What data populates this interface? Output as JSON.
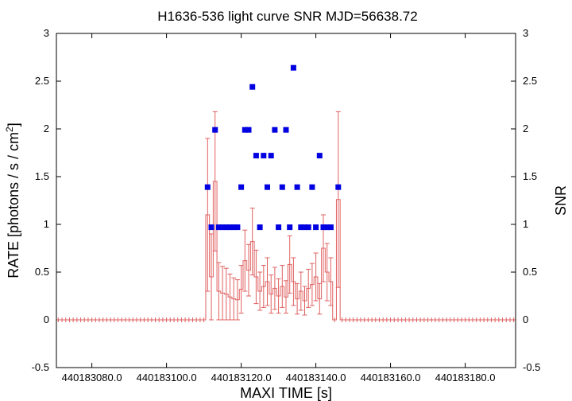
{
  "chart_data": {
    "type": "scatter",
    "title": "H1636-536 light curve  SNR MJD=56638.72",
    "xlabel": "MAXI TIME [s]",
    "ylabel_main": "RATE [photons / s / cm",
    "ylabel_sup": "2",
    "ylabel_end": "]",
    "y2label": "SNR",
    "xlim": [
      440183070.5,
      440183193.5
    ],
    "ylim": [
      -0.5,
      3
    ],
    "y2lim": [
      -0.5,
      3
    ],
    "xticks": [
      440183080,
      440183100,
      440183120,
      440183140,
      440183160,
      440183180
    ],
    "xtick_labels": [
      "440183080.0",
      "440183100.0",
      "440183120.0",
      "440183140.0",
      "440183160.0",
      "440183180.0"
    ],
    "yticks": [
      -0.5,
      0,
      0.5,
      1,
      1.5,
      2,
      2.5,
      3
    ],
    "ytick_labels": [
      "-0.5",
      "0",
      "0.5",
      "1",
      "1.5",
      "2",
      "2.5",
      "3"
    ],
    "y2tick_labels": [
      "-0.5",
      "0",
      "0.5",
      "1",
      "1.5",
      "2",
      "2.5",
      "3"
    ],
    "bin_width": 1.0,
    "colors": {
      "rate": "#e06060",
      "snr": "#0000e0"
    },
    "series": [
      {
        "name": "RATE",
        "style": "histogram-errorbars",
        "x": [
          440183071,
          440183072,
          440183073,
          440183074,
          440183075,
          440183076,
          440183077,
          440183078,
          440183079,
          440183080,
          440183081,
          440183082,
          440183083,
          440183084,
          440183085,
          440183086,
          440183087,
          440183088,
          440183089,
          440183090,
          440183091,
          440183092,
          440183093,
          440183094,
          440183095,
          440183096,
          440183097,
          440183098,
          440183099,
          440183100,
          440183101,
          440183102,
          440183103,
          440183104,
          440183105,
          440183106,
          440183107,
          440183108,
          440183109,
          440183110,
          440183111,
          440183112,
          440183113,
          440183114,
          440183115,
          440183116,
          440183117,
          440183118,
          440183119,
          440183120,
          440183121,
          440183122,
          440183123,
          440183124,
          440183125,
          440183126,
          440183127,
          440183128,
          440183129,
          440183130,
          440183131,
          440183132,
          440183133,
          440183134,
          440183135,
          440183136,
          440183137,
          440183138,
          440183139,
          440183140,
          440183141,
          440183142,
          440183143,
          440183144,
          440183145,
          440183146,
          440183147,
          440183148,
          440183149,
          440183150,
          440183151,
          440183152,
          440183153,
          440183154,
          440183155,
          440183156,
          440183157,
          440183158,
          440183159,
          440183160,
          440183161,
          440183162,
          440183163,
          440183164,
          440183165,
          440183166,
          440183167,
          440183168,
          440183169,
          440183170,
          440183171,
          440183172,
          440183173,
          440183174,
          440183175,
          440183176,
          440183177,
          440183178,
          440183179,
          440183180,
          440183181,
          440183182,
          440183183,
          440183184,
          440183185,
          440183186,
          440183187,
          440183188,
          440183189,
          440183190,
          440183191,
          440183192,
          440183193
        ],
        "y": [
          0,
          0,
          0,
          0,
          0,
          0,
          0,
          0,
          0,
          0,
          0,
          0,
          0,
          0,
          0,
          0,
          0,
          0,
          0,
          0,
          0,
          0,
          0,
          0,
          0,
          0,
          0,
          0,
          0,
          0,
          0,
          0,
          0,
          0,
          0,
          0,
          0,
          0,
          0,
          0,
          1.1,
          0.45,
          1.45,
          0.3,
          0.28,
          0.27,
          0.24,
          0.22,
          0.21,
          0.32,
          0.62,
          0.52,
          0.82,
          0.45,
          0.3,
          0.35,
          0.4,
          0.27,
          0.33,
          0.25,
          0.35,
          0.24,
          0.58,
          0.4,
          0.22,
          0.3,
          0.2,
          0.33,
          0.37,
          0.45,
          0.22,
          0.75,
          0.5,
          0.4,
          0,
          1.26,
          0,
          0,
          0,
          0,
          0,
          0,
          0,
          0,
          0,
          0,
          0,
          0,
          0,
          0,
          0,
          0,
          0,
          0,
          0,
          0,
          0,
          0,
          0,
          0,
          0,
          0,
          0,
          0,
          0,
          0,
          0,
          0,
          0,
          0,
          0,
          0,
          0,
          0,
          0,
          0,
          0,
          0,
          0,
          0,
          0,
          0,
          0
        ],
        "yerr": [
          0,
          0,
          0,
          0,
          0,
          0,
          0,
          0,
          0,
          0,
          0,
          0,
          0,
          0,
          0,
          0,
          0,
          0,
          0,
          0,
          0,
          0,
          0,
          0,
          0,
          0,
          0,
          0,
          0,
          0,
          0,
          0,
          0,
          0,
          0,
          0,
          0,
          0,
          0,
          0,
          0.8,
          0.45,
          0.73,
          0.3,
          0.28,
          0.27,
          0.24,
          0.22,
          0.21,
          0.25,
          0.32,
          0.27,
          0.35,
          0.28,
          0.2,
          0.22,
          0.25,
          0.2,
          0.22,
          0.18,
          0.22,
          0.17,
          0.3,
          0.25,
          0.16,
          0.2,
          0.15,
          0.2,
          0.22,
          0.25,
          0.16,
          0.35,
          0.3,
          0.25,
          0,
          0.92,
          0,
          0,
          0,
          0,
          0,
          0,
          0,
          0,
          0,
          0,
          0,
          0,
          0,
          0,
          0,
          0,
          0,
          0,
          0,
          0,
          0,
          0,
          0,
          0,
          0,
          0,
          0,
          0,
          0,
          0,
          0,
          0,
          0,
          0,
          0,
          0,
          0,
          0,
          0,
          0,
          0,
          0,
          0,
          0,
          0,
          0,
          0
        ]
      },
      {
        "name": "SNR",
        "style": "squares",
        "x": [
          440183111,
          440183112,
          440183113,
          440183114,
          440183115,
          440183116,
          440183117,
          440183118,
          440183119,
          440183120,
          440183121,
          440183122,
          440183123,
          440183124,
          440183125,
          440183126,
          440183127,
          440183128,
          440183129,
          440183130,
          440183131,
          440183132,
          440183133,
          440183134,
          440183135,
          440183136,
          440183137,
          440183138,
          440183139,
          440183140,
          440183141,
          440183142,
          440183143,
          440183144,
          440183146
        ],
        "y": [
          1.39,
          0.97,
          1.99,
          0.97,
          0.97,
          0.97,
          0.97,
          0.97,
          0.97,
          1.39,
          1.99,
          1.99,
          2.44,
          1.72,
          0.97,
          1.72,
          1.39,
          1.72,
          1.99,
          0.97,
          1.39,
          1.99,
          0.97,
          2.64,
          1.39,
          0.97,
          0.97,
          0.97,
          1.39,
          0.97,
          1.72,
          0.97,
          0.97,
          0.97,
          1.39
        ]
      }
    ]
  }
}
